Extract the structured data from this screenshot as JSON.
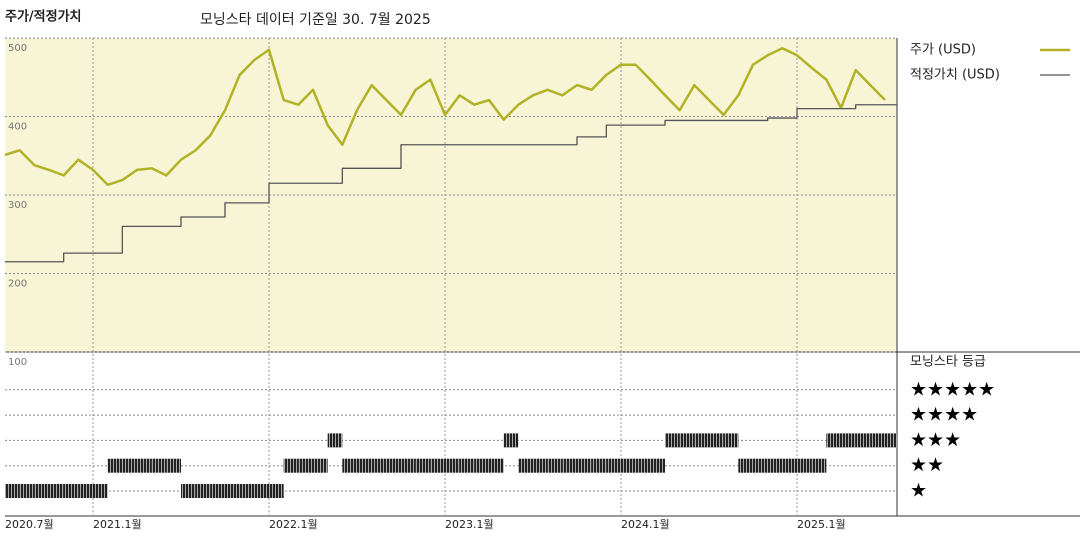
{
  "chart_data": {
    "type": "line",
    "title": "주가/적정가치",
    "subtitle": "모닝스타 데이터 기준일 30. 7월 2025",
    "x": [
      "2020-07",
      "2020-08",
      "2020-09",
      "2020-10",
      "2020-11",
      "2020-12",
      "2021-01",
      "2021-02",
      "2021-03",
      "2021-04",
      "2021-05",
      "2021-06",
      "2021-07",
      "2021-08",
      "2021-09",
      "2021-10",
      "2021-11",
      "2021-12",
      "2022-01",
      "2022-02",
      "2022-03",
      "2022-04",
      "2022-05",
      "2022-06",
      "2022-07",
      "2022-08",
      "2022-09",
      "2022-10",
      "2022-11",
      "2022-12",
      "2023-01",
      "2023-02",
      "2023-03",
      "2023-04",
      "2023-05",
      "2023-06",
      "2023-07",
      "2023-08",
      "2023-09",
      "2023-10",
      "2023-11",
      "2023-12",
      "2024-01",
      "2024-02",
      "2024-03",
      "2024-04",
      "2024-05",
      "2024-06",
      "2024-07",
      "2024-08",
      "2024-09",
      "2024-10",
      "2024-11",
      "2024-12",
      "2025-01",
      "2025-02",
      "2025-03",
      "2025-04",
      "2025-05",
      "2025-06",
      "2025-07"
    ],
    "series": [
      {
        "name": "주가 (USD)",
        "color": "#b2b226",
        "values": [
          351,
          357,
          338,
          332,
          325,
          345,
          332,
          313,
          319,
          332,
          334,
          325,
          345,
          357,
          376,
          408,
          453,
          472,
          485,
          421,
          415,
          434,
          389,
          364,
          408,
          440,
          421,
          402,
          434,
          447,
          402,
          427,
          415,
          421,
          396,
          415,
          427,
          434,
          427,
          440,
          434,
          453,
          466,
          466,
          447,
          427,
          408,
          440,
          421,
          402,
          427,
          466,
          478,
          487,
          478,
          462,
          447,
          411,
          459,
          440,
          421
        ]
      },
      {
        "name": "적정가치 (USD)",
        "color": "#555555",
        "step": true,
        "values": [
          215,
          215,
          215,
          215,
          226,
          226,
          226,
          226,
          260,
          260,
          260,
          260,
          272,
          272,
          272,
          290,
          290,
          290,
          315,
          315,
          315,
          315,
          315,
          334,
          334,
          334,
          334,
          364,
          364,
          364,
          364,
          364,
          364,
          364,
          364,
          364,
          364,
          364,
          364,
          374,
          374,
          389,
          389,
          389,
          389,
          395,
          395,
          395,
          395,
          395,
          395,
          395,
          398,
          398,
          410,
          410,
          410,
          410,
          415,
          415,
          415
        ]
      }
    ],
    "ylim": [
      100,
      500
    ],
    "yticks": [
      100,
      200,
      300,
      400,
      500
    ],
    "grid": true,
    "xticks": [
      {
        "value": "2020-07",
        "label": "2020.7월"
      },
      {
        "value": "2021-01",
        "label": "2021.1월"
      },
      {
        "value": "2022-01",
        "label": "2022.1월"
      },
      {
        "value": "2023-01",
        "label": "2023.1월"
      },
      {
        "value": "2024-01",
        "label": "2024.1월"
      },
      {
        "value": "2025-01",
        "label": "2025.1월"
      }
    ],
    "ratings": {
      "title": "모닝스타 등급",
      "levels": [
        "★",
        "★★",
        "★★★",
        "★★★★",
        "★★★★★"
      ],
      "values": [
        1,
        1,
        1,
        1,
        1,
        1,
        1,
        2,
        2,
        2,
        2,
        2,
        1,
        1,
        1,
        1,
        1,
        1,
        1,
        2,
        2,
        2,
        3,
        2,
        2,
        2,
        2,
        2,
        2,
        2,
        2,
        2,
        2,
        2,
        3,
        2,
        2,
        2,
        2,
        2,
        2,
        2,
        2,
        2,
        2,
        3,
        3,
        3,
        3,
        3,
        2,
        2,
        2,
        2,
        2,
        2,
        3,
        3,
        3,
        3,
        3
      ]
    }
  }
}
